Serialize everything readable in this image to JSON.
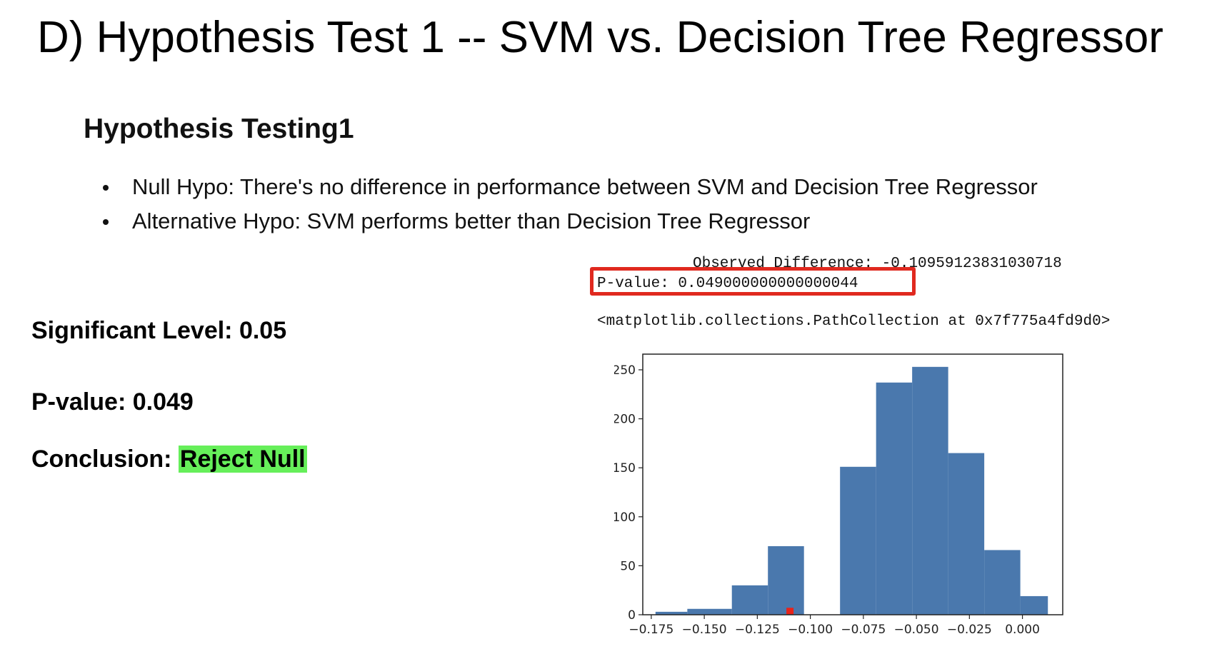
{
  "slide": {
    "title": "D) Hypothesis Test 1 -- SVM vs. Decision Tree Regressor",
    "heading": "Hypothesis Testing1",
    "bullets": [
      "Null Hypo: There's no difference in performance between SVM and Decision Tree Regressor",
      "Alternative Hypo: SVM performs better than Decision Tree Regressor"
    ],
    "significance": "Significant Level: 0.05",
    "pvalue": "P-value: 0.049",
    "conclusion_label": "Conclusion:",
    "conclusion_value": "Reject Null"
  },
  "notebook_output": {
    "observed": "Observed Difference: -0.10959123831030718",
    "pvalue": "P-value: 0.049000000000000044",
    "repr": "<matplotlib.collections.PathCollection at 0x7f775a4fd9d0>"
  },
  "colors": {
    "bar": "#4a78ad",
    "marker": "#e8231a",
    "highlight": "#66ef5a",
    "box": "#e0291f"
  },
  "chart_data": {
    "type": "bar",
    "bins": [
      [
        -0.173,
        -0.158
      ],
      [
        -0.158,
        -0.137
      ],
      [
        -0.137,
        -0.12
      ],
      [
        -0.12,
        -0.103
      ],
      [
        -0.103,
        -0.086
      ],
      [
        -0.086,
        -0.069
      ],
      [
        -0.069,
        -0.052
      ],
      [
        -0.052,
        -0.035
      ],
      [
        -0.035,
        -0.018
      ],
      [
        -0.018,
        -0.001
      ],
      [
        -0.001,
        0.012
      ]
    ],
    "values": [
      3,
      6,
      30,
      70,
      0,
      151,
      237,
      253,
      165,
      66,
      19
    ],
    "observed_marker": {
      "x": -0.1096,
      "y": 2
    },
    "xticks": [
      -0.175,
      -0.15,
      -0.125,
      -0.1,
      -0.075,
      -0.05,
      -0.025,
      0.0
    ],
    "xtick_labels": [
      "−0.175",
      "−0.150",
      "−0.125",
      "−0.100",
      "−0.075",
      "−0.050",
      "−0.025",
      "0.000"
    ],
    "yticks": [
      0,
      50,
      100,
      150,
      200,
      250
    ],
    "ytick_labels": [
      "0",
      "50",
      "100",
      "150",
      "200",
      "250"
    ],
    "xlim": [
      -0.179,
      0.019
    ],
    "ylim": [
      0,
      266
    ],
    "grid": false
  }
}
